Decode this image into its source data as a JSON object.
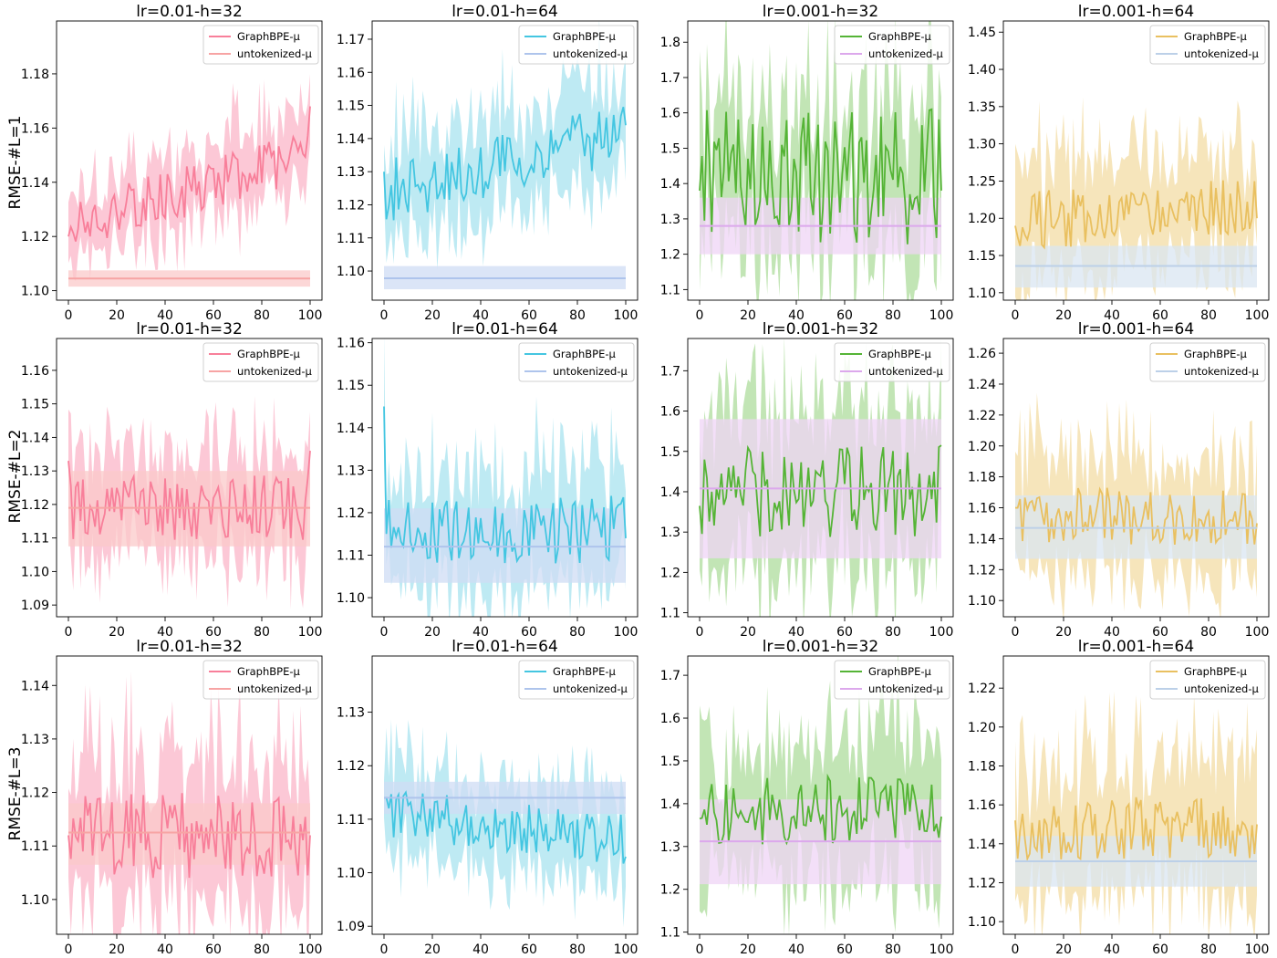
{
  "figure": {
    "row_labels": [
      "RMSE-#L=1",
      "RMSE-#L=2",
      "RMSE-#L=3"
    ],
    "legend_labels": [
      "GraphBPE-μ",
      "untokenized-μ"
    ]
  },
  "chart_data": [
    {
      "type": "line",
      "title": "lr=0.01-h=32",
      "ylabel": "RMSE-#L=1",
      "xlim": [
        0,
        100
      ],
      "ylim": [
        1.0965,
        1.1995
      ],
      "xticks": [
        0,
        20,
        40,
        60,
        80,
        100
      ],
      "yticks": [
        "1.10",
        "1.12",
        "1.14",
        "1.16",
        "1.18"
      ],
      "ytick_values": [
        1.1,
        1.12,
        1.14,
        1.16,
        1.18
      ],
      "colors": {
        "main": "#f87f9a",
        "main_band": "#fbb5c8",
        "base": "#f7a4a4",
        "base_band": "#fbc9c9"
      },
      "series": [
        {
          "name": "GraphBPE-μ",
          "start": 1.12,
          "end": 1.168,
          "mean_start": 1.124,
          "mean_end": 1.15,
          "noise": 0.006,
          "band_width": 0.012
        },
        {
          "name": "untokenized-μ",
          "value": 1.1045,
          "band": [
            1.1015,
            1.1075
          ]
        }
      ]
    },
    {
      "type": "line",
      "title": "lr=0.01-h=64",
      "ylabel": "",
      "xlim": [
        0,
        100
      ],
      "ylim": [
        1.0912,
        1.1755
      ],
      "xticks": [
        0,
        20,
        40,
        60,
        80,
        100
      ],
      "yticks": [
        "1.10",
        "1.11",
        "1.12",
        "1.13",
        "1.14",
        "1.15",
        "1.16",
        "1.17"
      ],
      "ytick_values": [
        1.1,
        1.11,
        1.12,
        1.13,
        1.14,
        1.15,
        1.16,
        1.17
      ],
      "colors": {
        "main": "#44c6e1",
        "main_band": "#a8e3ef",
        "base": "#aec4ec",
        "base_band": "#cfdcf4"
      },
      "series": [
        {
          "name": "GraphBPE-μ",
          "start": 1.13,
          "end": 1.144,
          "mean_start": 1.124,
          "mean_end": 1.142,
          "noise": 0.006,
          "band_width": 0.012
        },
        {
          "name": "untokenized-μ",
          "value": 1.0978,
          "band": [
            1.0945,
            1.1015
          ]
        }
      ]
    },
    {
      "type": "line",
      "title": "lr=0.001-h=32",
      "ylabel": "",
      "xlim": [
        0,
        100
      ],
      "ylim": [
        1.07,
        1.86
      ],
      "xticks": [
        0,
        20,
        40,
        60,
        80,
        100
      ],
      "yticks": [
        "1.1",
        "1.2",
        "1.3",
        "1.4",
        "1.5",
        "1.6",
        "1.7",
        "1.8"
      ],
      "ytick_values": [
        1.1,
        1.2,
        1.3,
        1.4,
        1.5,
        1.6,
        1.7,
        1.8
      ],
      "colors": {
        "main": "#55b436",
        "main_band": "#aedc9c",
        "base": "#dca8ec",
        "base_band": "#efd4f5"
      },
      "series": [
        {
          "name": "GraphBPE-μ",
          "start": 1.38,
          "end": 1.38,
          "mean_start": 1.42,
          "mean_end": 1.42,
          "noise": 0.12,
          "band_width": 0.16
        },
        {
          "name": "untokenized-μ",
          "value": 1.28,
          "band": [
            1.2,
            1.36
          ]
        }
      ]
    },
    {
      "type": "line",
      "title": "lr=0.001-h=64",
      "ylabel": "",
      "xlim": [
        0,
        100
      ],
      "ylim": [
        1.09,
        1.465
      ],
      "xticks": [
        0,
        20,
        40,
        60,
        80,
        100
      ],
      "yticks": [
        "1.10",
        "1.15",
        "1.20",
        "1.25",
        "1.30",
        "1.35",
        "1.40",
        "1.45"
      ],
      "ytick_values": [
        1.1,
        1.15,
        1.2,
        1.25,
        1.3,
        1.35,
        1.4,
        1.45
      ],
      "colors": {
        "main": "#e9c060",
        "main_band": "#f3dca4",
        "base": "#bcd0e8",
        "base_band": "#dae6f2"
      },
      "series": [
        {
          "name": "GraphBPE-μ",
          "start": 1.19,
          "end": 1.2,
          "mean_start": 1.195,
          "mean_end": 1.215,
          "noise": 0.025,
          "band_width": 0.06
        },
        {
          "name": "untokenized-μ",
          "value": 1.136,
          "band": [
            1.107,
            1.163
          ]
        }
      ]
    },
    {
      "type": "line",
      "title": "lr=0.01-h=32",
      "ylabel": "RMSE-#L=2",
      "xlim": [
        0,
        100
      ],
      "ylim": [
        1.0865,
        1.1695
      ],
      "xticks": [
        0,
        20,
        40,
        60,
        80,
        100
      ],
      "yticks": [
        "1.09",
        "1.10",
        "1.11",
        "1.12",
        "1.13",
        "1.14",
        "1.15",
        "1.16"
      ],
      "ytick_values": [
        1.09,
        1.1,
        1.11,
        1.12,
        1.13,
        1.14,
        1.15,
        1.16
      ],
      "colors": {
        "main": "#f87f9a",
        "main_band": "#fbb5c8",
        "base": "#f7a4a4",
        "base_band": "#fbc9c9"
      },
      "series": [
        {
          "name": "GraphBPE-μ",
          "start": 1.133,
          "end": 1.136,
          "mean_start": 1.119,
          "mean_end": 1.119,
          "noise": 0.006,
          "band_width": 0.012
        },
        {
          "name": "untokenized-μ",
          "value": 1.119,
          "band": [
            1.1075,
            1.13
          ]
        }
      ]
    },
    {
      "type": "line",
      "title": "lr=0.01-h=64",
      "ylabel": "",
      "xlim": [
        0,
        100
      ],
      "ylim": [
        1.0955,
        1.161
      ],
      "xticks": [
        0,
        20,
        40,
        60,
        80,
        100
      ],
      "yticks": [
        "1.10",
        "1.11",
        "1.12",
        "1.13",
        "1.14",
        "1.15",
        "1.16"
      ],
      "ytick_values": [
        1.1,
        1.11,
        1.12,
        1.13,
        1.14,
        1.15,
        1.16
      ],
      "colors": {
        "main": "#44c6e1",
        "main_band": "#a8e3ef",
        "base": "#aec4ec",
        "base_band": "#cfdcf4"
      },
      "series": [
        {
          "name": "GraphBPE-μ",
          "start": 1.145,
          "end": 1.114,
          "mean_start": 1.116,
          "mean_end": 1.116,
          "noise": 0.005,
          "band_width": 0.011
        },
        {
          "name": "untokenized-μ",
          "value": 1.112,
          "band": [
            1.1035,
            1.121
          ]
        }
      ]
    },
    {
      "type": "line",
      "title": "lr=0.001-h=32",
      "ylabel": "",
      "xlim": [
        0,
        100
      ],
      "ylim": [
        1.09,
        1.78
      ],
      "xticks": [
        0,
        20,
        40,
        60,
        80,
        100
      ],
      "yticks": [
        "1.1",
        "1.2",
        "1.3",
        "1.4",
        "1.5",
        "1.6",
        "1.7"
      ],
      "ytick_values": [
        1.1,
        1.2,
        1.3,
        1.4,
        1.5,
        1.6,
        1.7
      ],
      "colors": {
        "main": "#55b436",
        "main_band": "#aedc9c",
        "base": "#dca8ec",
        "base_band": "#efd4f5"
      },
      "series": [
        {
          "name": "GraphBPE-μ",
          "start": 1.365,
          "end": 1.515,
          "mean_start": 1.4,
          "mean_end": 1.4,
          "noise": 0.07,
          "band_width": 0.15
        },
        {
          "name": "untokenized-μ",
          "value": 1.408,
          "band": [
            1.235,
            1.58
          ]
        }
      ]
    },
    {
      "type": "line",
      "title": "lr=0.001-h=64",
      "ylabel": "",
      "xlim": [
        0,
        100
      ],
      "ylim": [
        1.0895,
        1.2695
      ],
      "xticks": [
        0,
        20,
        40,
        60,
        80,
        100
      ],
      "yticks": [
        "1.10",
        "1.12",
        "1.14",
        "1.16",
        "1.18",
        "1.20",
        "1.22",
        "1.24",
        "1.26"
      ],
      "ytick_values": [
        1.1,
        1.12,
        1.14,
        1.16,
        1.18,
        1.2,
        1.22,
        1.24,
        1.26
      ],
      "colors": {
        "main": "#e9c060",
        "main_band": "#f3dca4",
        "base": "#bcd0e8",
        "base_band": "#dae6f2"
      },
      "series": [
        {
          "name": "GraphBPE-μ",
          "start": 1.16,
          "end": 1.15,
          "mean_start": 1.155,
          "mean_end": 1.155,
          "noise": 0.012,
          "band_width": 0.03
        },
        {
          "name": "untokenized-μ",
          "value": 1.147,
          "band": [
            1.127,
            1.168
          ]
        }
      ]
    },
    {
      "type": "line",
      "title": "lr=0.01-h=32",
      "ylabel": "RMSE-#L=3",
      "xlim": [
        0,
        100
      ],
      "ylim": [
        1.0935,
        1.1455
      ],
      "xticks": [
        0,
        20,
        40,
        60,
        80,
        100
      ],
      "yticks": [
        "1.10",
        "1.11",
        "1.12",
        "1.13",
        "1.14"
      ],
      "ytick_values": [
        1.1,
        1.11,
        1.12,
        1.13,
        1.14
      ],
      "colors": {
        "main": "#f87f9a",
        "main_band": "#fbb5c8",
        "base": "#f7a4a4",
        "base_band": "#fbc9c9"
      },
      "series": [
        {
          "name": "GraphBPE-μ",
          "start": 1.112,
          "end": 1.112,
          "mean_start": 1.112,
          "mean_end": 1.112,
          "noise": 0.005,
          "band_width": 0.011
        },
        {
          "name": "untokenized-μ",
          "value": 1.1125,
          "band": [
            1.1065,
            1.118
          ]
        }
      ]
    },
    {
      "type": "line",
      "title": "lr=0.01-h=64",
      "ylabel": "",
      "xlim": [
        0,
        100
      ],
      "ylim": [
        1.0885,
        1.1405
      ],
      "xticks": [
        0,
        20,
        40,
        60,
        80,
        100
      ],
      "yticks": [
        "1.09",
        "1.10",
        "1.11",
        "1.12",
        "1.13"
      ],
      "ytick_values": [
        1.09,
        1.1,
        1.11,
        1.12,
        1.13
      ],
      "colors": {
        "main": "#44c6e1",
        "main_band": "#a8e3ef",
        "base": "#aec4ec",
        "base_band": "#cfdcf4"
      },
      "series": [
        {
          "name": "GraphBPE-μ",
          "start": 1.114,
          "end": 1.103,
          "mean_start": 1.111,
          "mean_end": 1.106,
          "noise": 0.003,
          "band_width": 0.007
        },
        {
          "name": "untokenized-μ",
          "value": 1.114,
          "band": [
            1.111,
            1.117
          ]
        }
      ]
    },
    {
      "type": "line",
      "title": "lr=0.001-h=32",
      "ylabel": "",
      "xlim": [
        0,
        100
      ],
      "ylim": [
        1.095,
        1.745
      ],
      "xticks": [
        0,
        20,
        40,
        60,
        80,
        100
      ],
      "yticks": [
        "1.1",
        "1.2",
        "1.3",
        "1.4",
        "1.5",
        "1.6",
        "1.7"
      ],
      "ytick_values": [
        1.1,
        1.2,
        1.3,
        1.4,
        1.5,
        1.6,
        1.7
      ],
      "colors": {
        "main": "#55b436",
        "main_band": "#aedc9c",
        "base": "#dca8ec",
        "base_band": "#efd4f5"
      },
      "series": [
        {
          "name": "GraphBPE-μ",
          "start": 1.365,
          "end": 1.37,
          "mean_start": 1.38,
          "mean_end": 1.39,
          "noise": 0.05,
          "band_width": 0.13
        },
        {
          "name": "untokenized-μ",
          "value": 1.312,
          "band": [
            1.212,
            1.41
          ]
        }
      ]
    },
    {
      "type": "line",
      "title": "lr=0.001-h=64",
      "ylabel": "",
      "xlim": [
        0,
        100
      ],
      "ylim": [
        1.0935,
        1.2365
      ],
      "xticks": [
        0,
        20,
        40,
        60,
        80,
        100
      ],
      "yticks": [
        "1.10",
        "1.12",
        "1.14",
        "1.16",
        "1.18",
        "1.20",
        "1.22"
      ],
      "ytick_values": [
        1.1,
        1.12,
        1.14,
        1.16,
        1.18,
        1.2,
        1.22
      ],
      "colors": {
        "main": "#e9c060",
        "main_band": "#f3dca4",
        "base": "#bcd0e8",
        "base_band": "#dae6f2"
      },
      "series": [
        {
          "name": "GraphBPE-μ",
          "start": 1.152,
          "end": 1.15,
          "mean_start": 1.148,
          "mean_end": 1.148,
          "noise": 0.01,
          "band_width": 0.028
        },
        {
          "name": "untokenized-μ",
          "value": 1.131,
          "band": [
            1.118,
            1.144
          ]
        }
      ]
    }
  ]
}
